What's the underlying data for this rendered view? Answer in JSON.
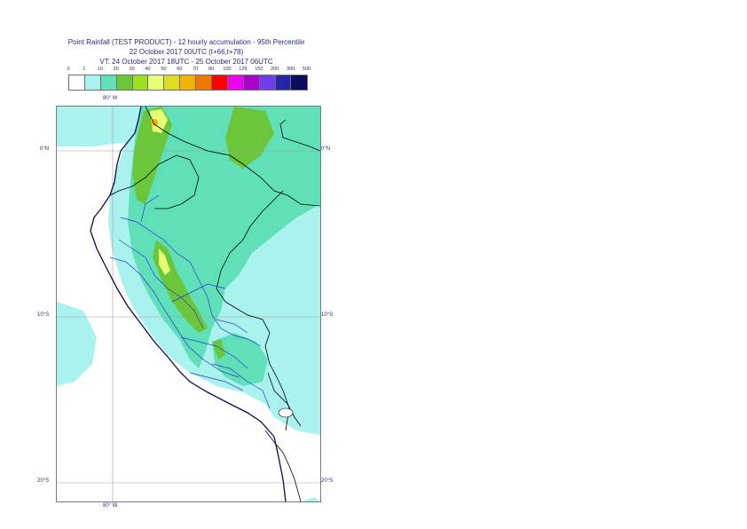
{
  "header": {
    "title_line1": "Point Rainfall (TEST PRODUCT) - 12 hourly accumulation - 95th Percentile",
    "title_line2": "22 October 2017 00UTC (t+66,t+78)",
    "title_line3": "VT: 24 October 2017 18UTC - 25 October 2017 06UTC"
  },
  "legend": {
    "labels": [
      "0",
      "1",
      "10",
      "20",
      "30",
      "40",
      "50",
      "60",
      "70",
      "80",
      "100",
      "125",
      "150",
      "200",
      "300",
      "500"
    ],
    "colors": [
      "#ffffff",
      "#aaf2ee",
      "#5fe0b8",
      "#6cc63a",
      "#98e020",
      "#e6ff73",
      "#dddd22",
      "#f0b400",
      "#f07800",
      "#ff0000",
      "#ee00ee",
      "#aa00cc",
      "#6e3ced",
      "#2525a8",
      "#0c0c5e"
    ]
  },
  "map": {
    "lon_labels_top": [
      "80° W"
    ],
    "lon_labels_bottom": [
      "80° W"
    ],
    "lat_labels_left": [
      "0°N",
      "10°S",
      "20°S"
    ],
    "lat_labels_right": [
      "0°N",
      "10°S",
      "20°S"
    ]
  }
}
